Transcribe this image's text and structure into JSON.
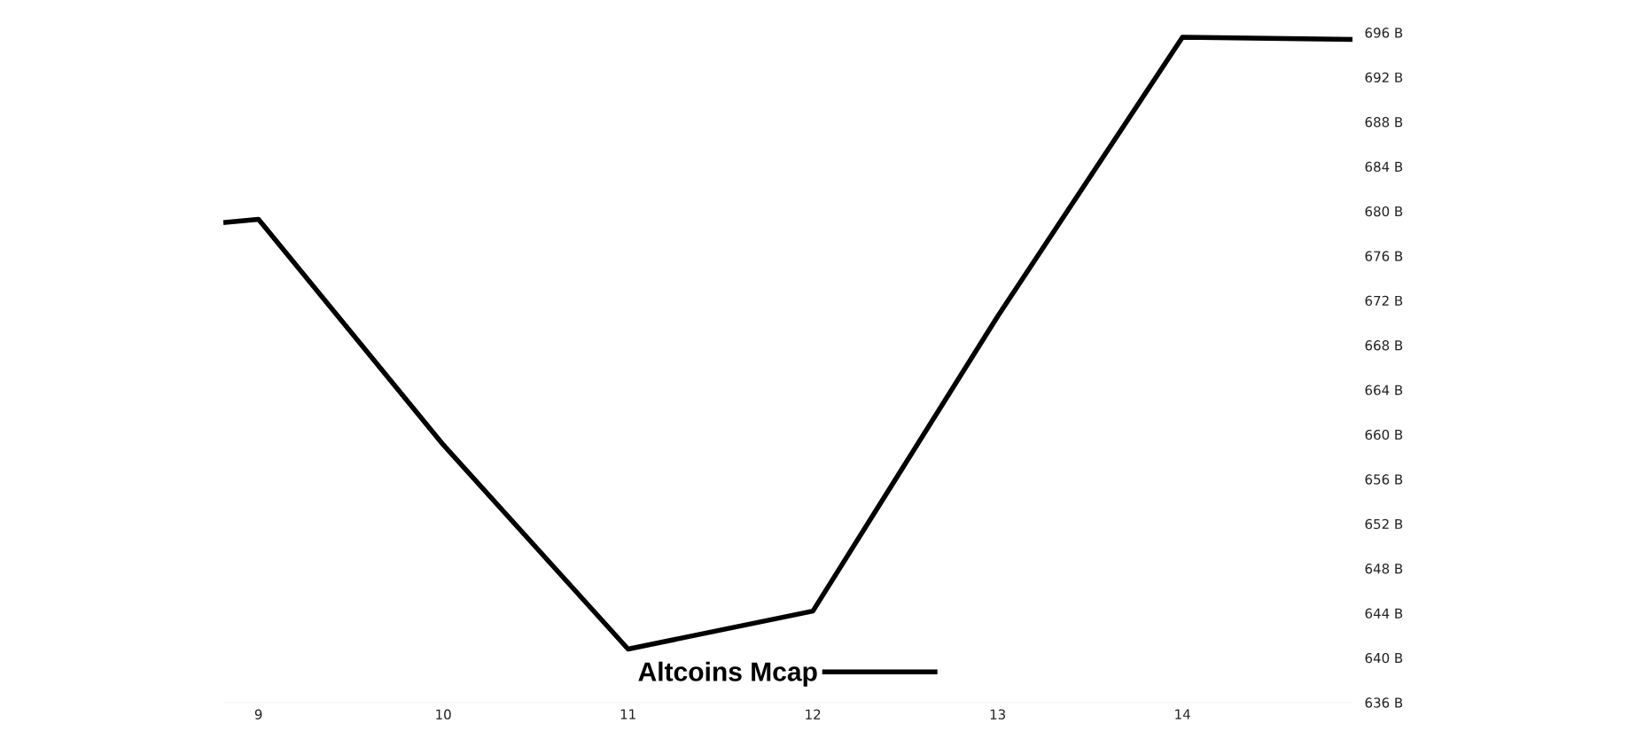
{
  "chart_data": {
    "type": "line",
    "x": [
      8.81,
      9,
      10,
      11,
      12,
      13,
      14,
      14.92
    ],
    "series": [
      {
        "name": "Altcoins Mcap",
        "color": "#000000",
        "values": [
          679.0,
          679.3,
          659.1,
          640.8,
          644.2,
          670.6,
          695.6,
          695.4
        ]
      }
    ],
    "xlim": [
      8.81,
      14.92
    ],
    "xticks": [
      9,
      10,
      11,
      12,
      13,
      14
    ],
    "ylim": [
      636,
      696
    ],
    "yticks": [
      {
        "value": 636,
        "label": "636 B"
      },
      {
        "value": 640,
        "label": "640 B"
      },
      {
        "value": 644,
        "label": "644 B"
      },
      {
        "value": 648,
        "label": "648 B"
      },
      {
        "value": 652,
        "label": "652 B"
      },
      {
        "value": 656,
        "label": "656 B"
      },
      {
        "value": 660,
        "label": "660 B"
      },
      {
        "value": 664,
        "label": "664 B"
      },
      {
        "value": 668,
        "label": "668 B"
      },
      {
        "value": 672,
        "label": "672 B"
      },
      {
        "value": 676,
        "label": "676 B"
      },
      {
        "value": 680,
        "label": "680 B"
      },
      {
        "value": 684,
        "label": "684 B"
      },
      {
        "value": 688,
        "label": "688 B"
      },
      {
        "value": 692,
        "label": "692 B"
      },
      {
        "value": 696,
        "label": "696 B"
      }
    ],
    "legend": "bottom",
    "grid": false,
    "marker": "none",
    "line_style": "solid"
  }
}
